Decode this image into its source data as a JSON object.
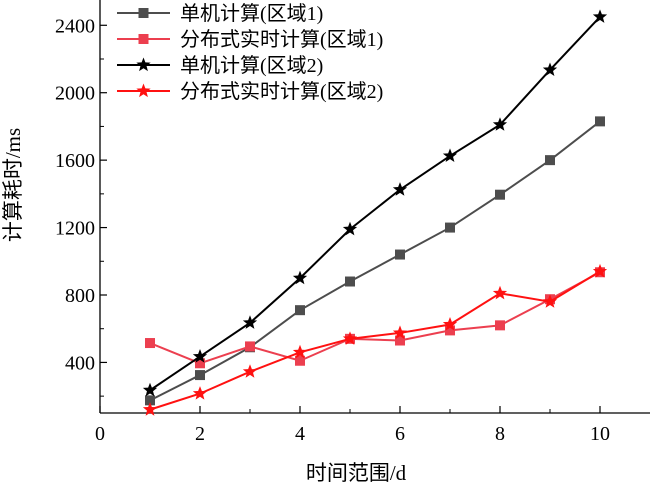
{
  "chart_data": {
    "type": "line",
    "title": "",
    "xlabel": "时间范围/d",
    "ylabel": "计算耗时/ms",
    "xlim": [
      0,
      11
    ],
    "ylim": [
      100,
      2550
    ],
    "xticks": [
      0,
      2,
      4,
      6,
      8,
      10
    ],
    "yticks": [
      400,
      800,
      1200,
      1600,
      2000,
      2400
    ],
    "grid": false,
    "legend_position": "top-left",
    "x": [
      1,
      2,
      3,
      4,
      5,
      6,
      7,
      8,
      9,
      10
    ],
    "series": [
      {
        "name": "单机计算(区域1)",
        "marker": "square",
        "color": "#4d4d4d",
        "values": [
          175,
          325,
          490,
          710,
          880,
          1040,
          1200,
          1395,
          1600,
          1830
        ]
      },
      {
        "name": "分布式实时计算(区域1)",
        "marker": "square",
        "color": "#ec3f4f",
        "values": [
          515,
          395,
          495,
          410,
          540,
          530,
          590,
          620,
          775,
          935
        ]
      },
      {
        "name": "单机计算(区域2)",
        "marker": "star",
        "color": "#000000",
        "values": [
          235,
          435,
          635,
          900,
          1190,
          1425,
          1625,
          1810,
          2135,
          2450
        ]
      },
      {
        "name": "分布式实时计算(区域2)",
        "marker": "star",
        "color": "#ff1111",
        "values": [
          120,
          215,
          345,
          460,
          540,
          575,
          625,
          810,
          760,
          940
        ]
      }
    ]
  }
}
